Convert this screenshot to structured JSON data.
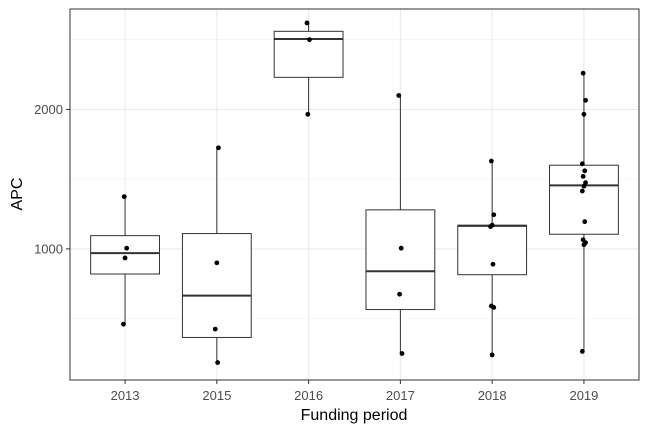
{
  "chart_data": {
    "type": "boxplot",
    "title": "",
    "xlabel": "Funding period",
    "ylabel": "APC",
    "ylim": [
      60,
      2720
    ],
    "y_ticks": [
      1000,
      2000
    ],
    "grid": true,
    "categories": [
      "2013",
      "2015",
      "2016",
      "2017",
      "2018",
      "2019"
    ],
    "boxes": [
      {
        "category": "2013",
        "q1": 820,
        "median": 970,
        "q3": 1095,
        "whisker_low": 460,
        "whisker_high": 1375
      },
      {
        "category": "2015",
        "q1": 365,
        "median": 665,
        "q3": 1110,
        "whisker_low": 185,
        "whisker_high": 1725
      },
      {
        "category": "2016",
        "q1": 2230,
        "median": 2505,
        "q3": 2560,
        "whisker_low": 1965,
        "whisker_high": 2620
      },
      {
        "category": "2017",
        "q1": 565,
        "median": 840,
        "q3": 1280,
        "whisker_low": 250,
        "whisker_high": 2100
      },
      {
        "category": "2018",
        "q1": 815,
        "median": 1165,
        "q3": 1170,
        "whisker_low": 240,
        "whisker_high": 1630
      },
      {
        "category": "2019",
        "q1": 1105,
        "median": 1455,
        "q3": 1600,
        "whisker_low": 265,
        "whisker_high": 2260
      }
    ],
    "points": [
      {
        "category": "2013",
        "values": [
          460,
          935,
          1005,
          1375
        ]
      },
      {
        "category": "2015",
        "values": [
          185,
          425,
          900,
          1725
        ]
      },
      {
        "category": "2016",
        "values": [
          1965,
          2500,
          2620
        ]
      },
      {
        "category": "2017",
        "values": [
          250,
          675,
          1005,
          2100
        ]
      },
      {
        "category": "2018",
        "values": [
          240,
          580,
          590,
          890,
          1160,
          1170,
          1245,
          1630
        ]
      },
      {
        "category": "2019",
        "values": [
          265,
          1030,
          1045,
          1065,
          1195,
          1415,
          1450,
          1475,
          1520,
          1560,
          1610,
          1965,
          2065,
          2260
        ]
      }
    ]
  }
}
